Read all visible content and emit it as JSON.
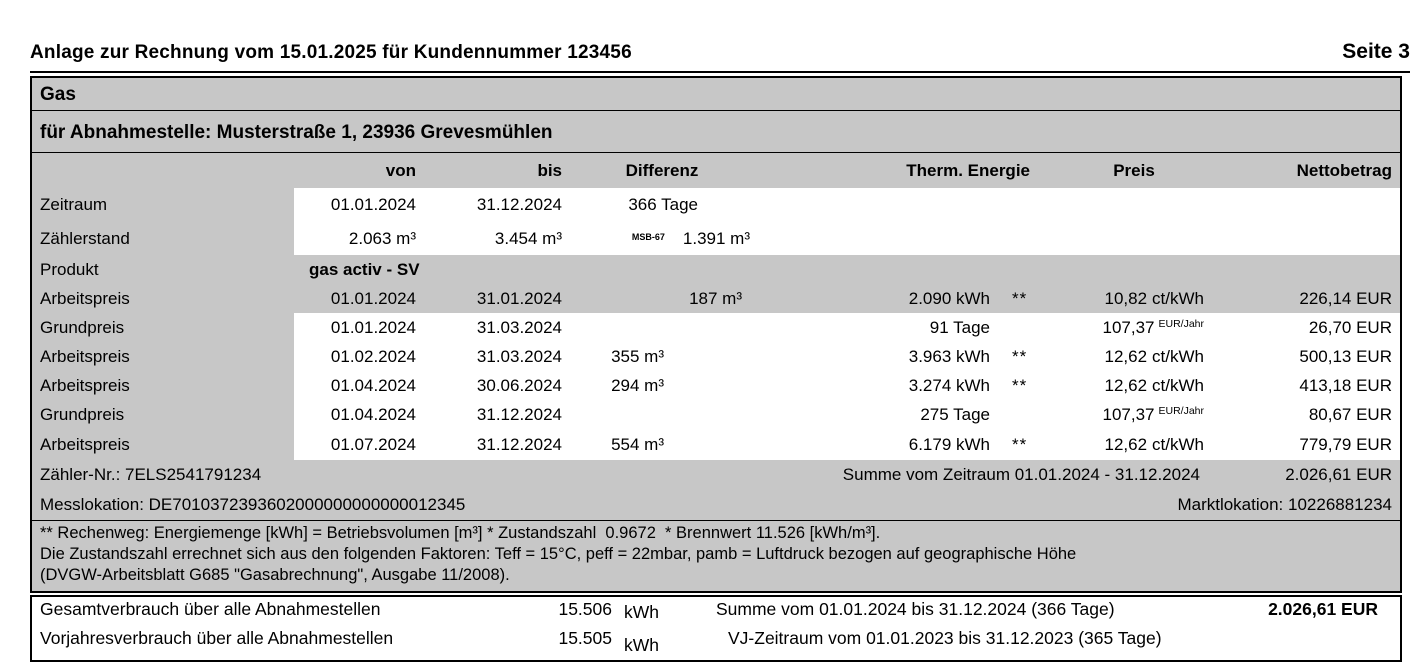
{
  "page": {
    "title": "Anlage zur Rechnung vom 15.01.2025 für Kundennummer 123456",
    "page_label": "Seite 3"
  },
  "section": {
    "title": "Gas",
    "subtitle": "für Abnahmestelle: Musterstraße 1, 23936 Grevesmühlen"
  },
  "table": {
    "headers": {
      "von": "von",
      "bis": "bis",
      "differenz": "Differenz",
      "energie": "Therm. Energie",
      "preis": "Preis",
      "netto": "Nettobetrag"
    },
    "rows": [
      {
        "label": "Zeitraum",
        "von": "01.01.2024",
        "bis": "31.12.2024",
        "diff": "366 Tage"
      },
      {
        "label": "Zählerstand",
        "von": "2.063 m³",
        "bis": "3.454 m³",
        "msb": "MSB-67",
        "diff": "1.391 m³"
      },
      {
        "label": "Produkt",
        "produkt": "gas activ - SV"
      },
      {
        "label": "Arbeitspreis",
        "von": "01.01.2024",
        "bis": "31.01.2024",
        "diff": "187 m³",
        "energie": "2.090 kWh",
        "marker": "**",
        "preis": "10,82",
        "preis_unit": "ct/kWh",
        "netto": "226,14 EUR"
      },
      {
        "label": "Grundpreis",
        "von": "01.01.2024",
        "bis": "31.03.2024",
        "energie": "91 Tage",
        "preis": "107,37",
        "preis_unit": "EUR/Jahr",
        "netto": "26,70 EUR"
      },
      {
        "label": "Arbeitspreis",
        "von": "01.02.2024",
        "bis": "31.03.2024",
        "diff": "355 m³",
        "energie": "3.963 kWh",
        "marker": "**",
        "preis": "12,62",
        "preis_unit": "ct/kWh",
        "netto": "500,13 EUR"
      },
      {
        "label": "Arbeitspreis",
        "von": "01.04.2024",
        "bis": "30.06.2024",
        "diff": "294 m³",
        "energie": "3.274 kWh",
        "marker": "**",
        "preis": "12,62",
        "preis_unit": "ct/kWh",
        "netto": "413,18 EUR"
      },
      {
        "label": "Grundpreis",
        "von": "01.04.2024",
        "bis": "31.12.2024",
        "energie": "275 Tage",
        "preis": "107,37",
        "preis_unit": "EUR/Jahr",
        "netto": "80,67 EUR"
      },
      {
        "label": "Arbeitspreis",
        "von": "01.07.2024",
        "bis": "31.12.2024",
        "diff": "554 m³",
        "energie": "6.179 kWh",
        "marker": "**",
        "preis": "12,62",
        "preis_unit": "ct/kWh",
        "netto": "779,79 EUR"
      }
    ]
  },
  "meta": {
    "zaehler_nr": "Zähler-Nr.: 7ELS2541791234",
    "summe_label": "Summe vom Zeitraum 01.01.2024 - 31.12.2024",
    "summe_value": "2.026,61 EUR",
    "messlokation": "Messlokation: DE7010372393602000000000000012345",
    "marktlokation": "Marktlokation: 10226881234"
  },
  "footnotes": {
    "line1": "** Rechenweg: Energiemenge [kWh] = Betriebsvolumen [m³] * Zustandszahl  0.9672  * Brennwert 11.526 [kWh/m³].",
    "line2": "Die Zustandszahl errechnet sich aus den folgenden Faktoren: Teff = 15°C, peff = 22mbar, pamb = Luftdruck bezogen auf geographische Höhe",
    "line3": "(DVGW-Arbeitsblatt G685 \"Gasabrechnung\", Ausgabe 11/2008)."
  },
  "totals": {
    "row1_label": "Gesamtverbrauch über alle Abnahmestellen",
    "row1_value": "15.506",
    "row1_unit": "kWh",
    "row1_summary": "Summe vom 01.01.2024 bis 31.12.2024 (366 Tage)",
    "row1_amount": "2.026,61 EUR",
    "row2_label": "Vorjahresverbrauch über alle Abnahmestellen",
    "row2_value": "15.505",
    "row2_unit": "kWh",
    "row2_summary": "VJ-Zeitraum vom 01.01.2023 bis 31.12.2023 (365 Tage)"
  },
  "colors": {
    "table_gray": "#c7c7c7",
    "border": "#000000",
    "text": "#000000",
    "background": "#ffffff"
  }
}
